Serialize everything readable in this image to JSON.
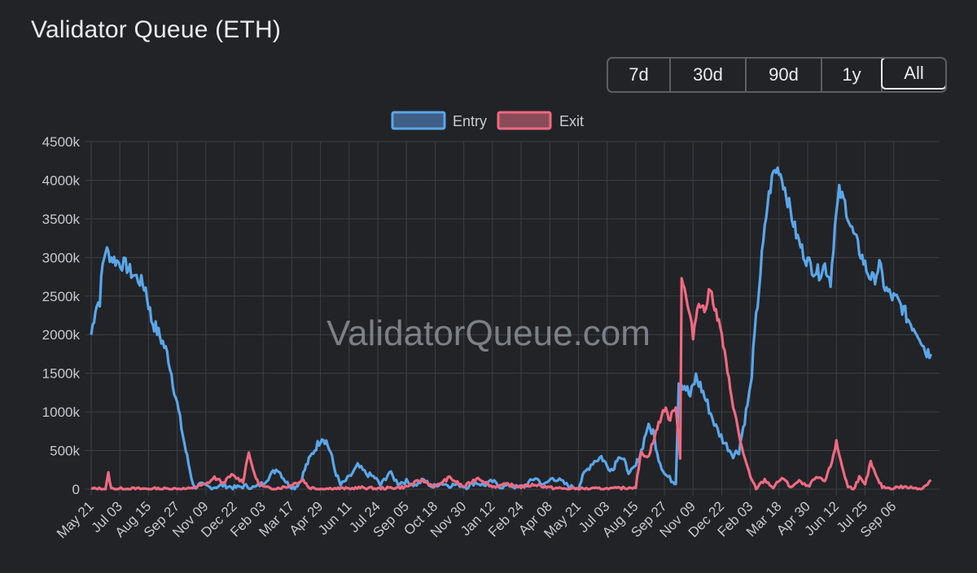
{
  "title": "Validator Queue (ETH)",
  "watermark": "ValidatorQueue.com",
  "range_buttons": [
    {
      "label": "7d",
      "active": false
    },
    {
      "label": "30d",
      "active": false
    },
    {
      "label": "90d",
      "active": false
    },
    {
      "label": "1y",
      "active": false
    },
    {
      "label": "All",
      "active": true
    }
  ],
  "colors": {
    "entry": "#5aa6e8",
    "entry_fill": "#3f5f86",
    "exit": "#ee6a80",
    "exit_fill": "#8a4b58",
    "background": "#212327",
    "grid": "#3c3f45"
  },
  "chart_data": {
    "type": "line",
    "title": "Validator Queue (ETH)",
    "legend": {
      "placement": "top-center",
      "entries": [
        "Entry",
        "Exit"
      ]
    },
    "grid": true,
    "ylim": [
      0,
      4500000
    ],
    "y_ticks": [
      {
        "value": 0,
        "label": "0"
      },
      {
        "value": 500000,
        "label": "500k"
      },
      {
        "value": 1000000,
        "label": "1000k"
      },
      {
        "value": 1500000,
        "label": "1500k"
      },
      {
        "value": 2000000,
        "label": "2000k"
      },
      {
        "value": 2500000,
        "label": "2500k"
      },
      {
        "value": 3000000,
        "label": "3000k"
      },
      {
        "value": 3500000,
        "label": "3500k"
      },
      {
        "value": 4000000,
        "label": "4000k"
      },
      {
        "value": 4500000,
        "label": "4500k"
      }
    ],
    "x_categories": [
      "May 21",
      "Jul 03",
      "Aug 15",
      "Sep 27",
      "Nov 09",
      "Dec 22",
      "Feb 03",
      "Mar 17",
      "Apr 29",
      "Jun 11",
      "Jul 24",
      "Sep 05",
      "Oct 18",
      "Nov 30",
      "Jan 12",
      "Feb 24",
      "Apr 08",
      "May 21",
      "Jul 03",
      "Aug 15",
      "Sep 27",
      "Nov 09",
      "Dec 22",
      "Feb 03",
      "Mar 18",
      "Apr 30",
      "Jun 12",
      "Jul 25",
      "Sep 06"
    ],
    "x_range": [
      0,
      29.6
    ],
    "series": [
      {
        "name": "Entry",
        "points": [
          [
            0,
            2000000
          ],
          [
            0.15,
            2350000
          ],
          [
            0.3,
            2450000
          ],
          [
            0.4,
            2900000
          ],
          [
            0.5,
            3100000
          ],
          [
            0.7,
            3000000
          ],
          [
            0.9,
            2950000
          ],
          [
            1.2,
            2900000
          ],
          [
            1.4,
            2800000
          ],
          [
            1.7,
            2700000
          ],
          [
            1.9,
            2600000
          ],
          [
            2.1,
            2200000
          ],
          [
            2.3,
            2050000
          ],
          [
            2.5,
            1900000
          ],
          [
            2.7,
            1700000
          ],
          [
            2.9,
            1300000
          ],
          [
            3.1,
            900000
          ],
          [
            3.3,
            500000
          ],
          [
            3.5,
            150000
          ],
          [
            3.6,
            20000
          ],
          [
            3.8,
            60000
          ],
          [
            4.2,
            20000
          ],
          [
            4.6,
            50000
          ],
          [
            5.0,
            20000
          ],
          [
            5.4,
            40000
          ],
          [
            5.7,
            20000
          ],
          [
            6.0,
            80000
          ],
          [
            6.3,
            200000
          ],
          [
            6.5,
            270000
          ],
          [
            6.7,
            150000
          ],
          [
            6.9,
            50000
          ],
          [
            7.1,
            20000
          ],
          [
            7.3,
            100000
          ],
          [
            7.5,
            300000
          ],
          [
            7.7,
            450000
          ],
          [
            7.9,
            580000
          ],
          [
            8.05,
            680000
          ],
          [
            8.2,
            620000
          ],
          [
            8.35,
            480000
          ],
          [
            8.5,
            250000
          ],
          [
            8.7,
            50000
          ],
          [
            9.0,
            150000
          ],
          [
            9.3,
            300000
          ],
          [
            9.6,
            200000
          ],
          [
            9.9,
            150000
          ],
          [
            10.1,
            50000
          ],
          [
            10.4,
            220000
          ],
          [
            10.7,
            80000
          ],
          [
            11.0,
            100000
          ],
          [
            11.3,
            50000
          ],
          [
            11.6,
            120000
          ],
          [
            11.9,
            30000
          ],
          [
            12.2,
            80000
          ],
          [
            12.5,
            50000
          ],
          [
            12.8,
            60000
          ],
          [
            13.1,
            30000
          ],
          [
            13.4,
            90000
          ],
          [
            13.7,
            50000
          ],
          [
            14.0,
            100000
          ],
          [
            14.3,
            30000
          ],
          [
            14.6,
            50000
          ],
          [
            14.9,
            20000
          ],
          [
            15.2,
            60000
          ],
          [
            15.5,
            150000
          ],
          [
            15.8,
            50000
          ],
          [
            16.1,
            150000
          ],
          [
            16.4,
            100000
          ],
          [
            16.7,
            30000
          ],
          [
            17.0,
            20000
          ],
          [
            17.2,
            200000
          ],
          [
            17.5,
            350000
          ],
          [
            17.8,
            420000
          ],
          [
            18.0,
            300000
          ],
          [
            18.2,
            250000
          ],
          [
            18.4,
            450000
          ],
          [
            18.6,
            350000
          ],
          [
            18.8,
            200000
          ],
          [
            19.0,
            300000
          ],
          [
            19.2,
            500000
          ],
          [
            19.4,
            800000
          ],
          [
            19.6,
            750000
          ],
          [
            19.8,
            400000
          ],
          [
            20.0,
            200000
          ],
          [
            20.3,
            100000
          ],
          [
            20.4,
            90000
          ],
          [
            20.5,
            1400000
          ],
          [
            20.7,
            1350000
          ],
          [
            20.9,
            1200000
          ],
          [
            21.1,
            1450000
          ],
          [
            21.3,
            1300000
          ],
          [
            21.5,
            1100000
          ],
          [
            21.8,
            800000
          ],
          [
            22.1,
            600000
          ],
          [
            22.4,
            450000
          ],
          [
            22.6,
            500000
          ],
          [
            22.8,
            900000
          ],
          [
            23.0,
            1300000
          ],
          [
            23.2,
            2200000
          ],
          [
            23.4,
            3000000
          ],
          [
            23.6,
            3700000
          ],
          [
            23.8,
            4100000
          ],
          [
            24.0,
            4150000
          ],
          [
            24.2,
            3900000
          ],
          [
            24.4,
            3600000
          ],
          [
            24.6,
            3300000
          ],
          [
            24.8,
            3100000
          ],
          [
            25.0,
            2950000
          ],
          [
            25.2,
            2850000
          ],
          [
            25.4,
            2800000
          ],
          [
            25.6,
            2900000
          ],
          [
            25.8,
            2700000
          ],
          [
            25.95,
            3400000
          ],
          [
            26.1,
            3850000
          ],
          [
            26.3,
            3700000
          ],
          [
            26.5,
            3400000
          ],
          [
            26.7,
            3200000
          ],
          [
            26.9,
            3000000
          ],
          [
            27.1,
            2800000
          ],
          [
            27.3,
            2700000
          ],
          [
            27.5,
            2900000
          ],
          [
            27.7,
            2600000
          ],
          [
            27.9,
            2500000
          ],
          [
            28.1,
            2450000
          ],
          [
            28.3,
            2350000
          ],
          [
            28.5,
            2200000
          ],
          [
            28.7,
            2100000
          ],
          [
            28.9,
            2000000
          ],
          [
            29.1,
            1800000
          ],
          [
            29.3,
            1750000
          ]
        ]
      },
      {
        "name": "Exit",
        "points": [
          [
            0,
            5000
          ],
          [
            0.5,
            5000
          ],
          [
            0.6,
            200000
          ],
          [
            0.7,
            5000
          ],
          [
            2.5,
            5000
          ],
          [
            3.5,
            5000
          ],
          [
            3.6,
            30000
          ],
          [
            4.0,
            60000
          ],
          [
            4.3,
            150000
          ],
          [
            4.6,
            80000
          ],
          [
            4.9,
            180000
          ],
          [
            5.3,
            100000
          ],
          [
            5.5,
            500000
          ],
          [
            5.6,
            300000
          ],
          [
            5.8,
            100000
          ],
          [
            6.0,
            30000
          ],
          [
            6.3,
            5000
          ],
          [
            6.8,
            30000
          ],
          [
            7.4,
            120000
          ],
          [
            7.6,
            20000
          ],
          [
            8.0,
            5000
          ],
          [
            8.5,
            10000
          ],
          [
            9.0,
            5000
          ],
          [
            9.5,
            20000
          ],
          [
            10.0,
            5000
          ],
          [
            11.0,
            30000
          ],
          [
            11.5,
            120000
          ],
          [
            12.0,
            30000
          ],
          [
            12.5,
            150000
          ],
          [
            13.0,
            30000
          ],
          [
            13.5,
            150000
          ],
          [
            14.0,
            30000
          ],
          [
            14.5,
            60000
          ],
          [
            15.0,
            30000
          ],
          [
            15.5,
            60000
          ],
          [
            16.0,
            20000
          ],
          [
            16.5,
            5000
          ],
          [
            17.0,
            5000
          ],
          [
            17.5,
            5000
          ],
          [
            18.0,
            5000
          ],
          [
            18.5,
            10000
          ],
          [
            19.0,
            30000
          ],
          [
            19.2,
            500000
          ],
          [
            19.4,
            400000
          ],
          [
            19.6,
            600000
          ],
          [
            19.8,
            850000
          ],
          [
            20.0,
            1050000
          ],
          [
            20.2,
            900000
          ],
          [
            20.4,
            1100000
          ],
          [
            20.55,
            400000
          ],
          [
            20.6,
            2750000
          ],
          [
            20.8,
            2400000
          ],
          [
            21.0,
            2000000
          ],
          [
            21.2,
            2450000
          ],
          [
            21.4,
            2300000
          ],
          [
            21.6,
            2600000
          ],
          [
            21.8,
            2300000
          ],
          [
            22.0,
            2000000
          ],
          [
            22.2,
            1500000
          ],
          [
            22.4,
            1100000
          ],
          [
            22.6,
            700000
          ],
          [
            22.8,
            400000
          ],
          [
            23.0,
            150000
          ],
          [
            23.2,
            10000
          ],
          [
            23.5,
            120000
          ],
          [
            23.8,
            20000
          ],
          [
            24.1,
            150000
          ],
          [
            24.4,
            30000
          ],
          [
            24.7,
            100000
          ],
          [
            25.0,
            30000
          ],
          [
            25.3,
            150000
          ],
          [
            25.6,
            100000
          ],
          [
            25.8,
            300000
          ],
          [
            26.0,
            600000
          ],
          [
            26.2,
            300000
          ],
          [
            26.4,
            30000
          ],
          [
            26.6,
            10000
          ],
          [
            26.8,
            150000
          ],
          [
            27.0,
            50000
          ],
          [
            27.2,
            350000
          ],
          [
            27.4,
            150000
          ],
          [
            27.6,
            30000
          ],
          [
            27.9,
            10000
          ],
          [
            28.2,
            30000
          ],
          [
            28.6,
            20000
          ],
          [
            29.0,
            10000
          ],
          [
            29.3,
            120000
          ]
        ]
      }
    ]
  }
}
